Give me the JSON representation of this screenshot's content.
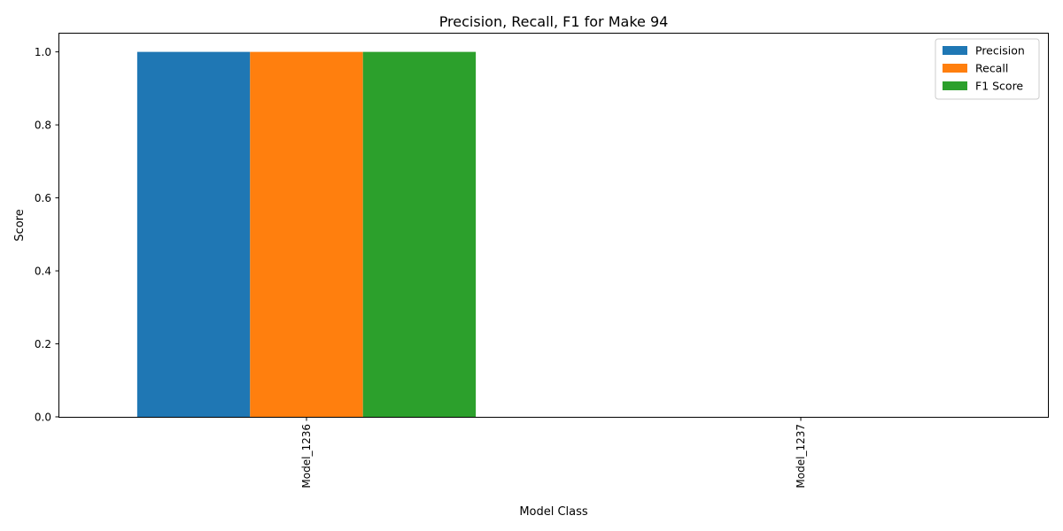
{
  "chart_data": {
    "type": "bar",
    "title": "Precision, Recall, F1 for Make 94",
    "xlabel": "Model Class",
    "ylabel": "Score",
    "categories": [
      "Model_1236",
      "Model_1237"
    ],
    "series": [
      {
        "name": "Precision",
        "values": [
          1.0,
          0.0
        ],
        "color": "#1f77b4"
      },
      {
        "name": "Recall",
        "values": [
          1.0,
          0.0
        ],
        "color": "#ff7f0e"
      },
      {
        "name": "F1 Score",
        "values": [
          1.0,
          0.0
        ],
        "color": "#2ca02c"
      }
    ],
    "ylim": [
      0,
      1.05
    ],
    "yticks": [
      0.0,
      0.2,
      0.4,
      0.6,
      0.8,
      1.0
    ],
    "ytick_labels": [
      "0.0",
      "0.2",
      "0.4",
      "0.6",
      "0.8",
      "1.0"
    ],
    "grid": false,
    "legend_position": "top-right"
  }
}
